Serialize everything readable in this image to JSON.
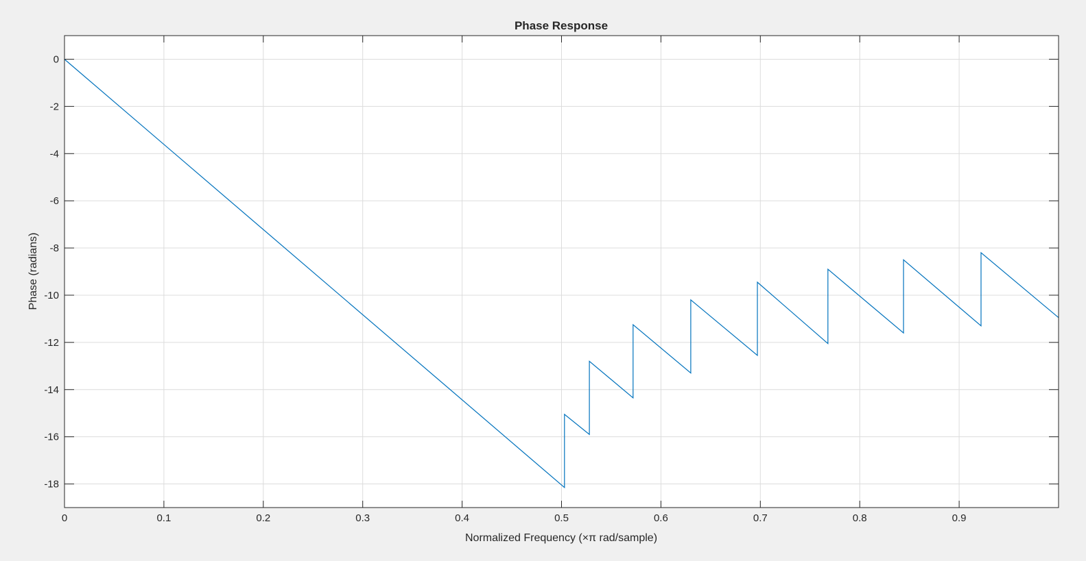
{
  "chart_data": {
    "type": "line",
    "title": "Phase Response",
    "xlabel": "Normalized Frequency (×π rad/sample)",
    "ylabel": "Phase (radians)",
    "xlim": [
      0,
      1
    ],
    "ylim": [
      -19,
      1
    ],
    "xticks": [
      0,
      0.1,
      0.2,
      0.3,
      0.4,
      0.5,
      0.6,
      0.7,
      0.8,
      0.9
    ],
    "xtick_labels": [
      "0",
      "0.1",
      "0.2",
      "0.3",
      "0.4",
      "0.5",
      "0.6",
      "0.7",
      "0.8",
      "0.9"
    ],
    "yticks": [
      0,
      -2,
      -4,
      -6,
      -8,
      -10,
      -12,
      -14,
      -16,
      -18
    ],
    "ytick_labels": [
      "0",
      "-2",
      "-4",
      "-6",
      "-8",
      "-10",
      "-12",
      "-14",
      "-16",
      "-18"
    ],
    "grid": true,
    "series": [
      {
        "color": "#0072bd",
        "x": [
          0,
          0.503,
          0.503,
          0.528,
          0.528,
          0.572,
          0.572,
          0.63,
          0.63,
          0.697,
          0.697,
          0.768,
          0.768,
          0.844,
          0.844,
          0.922,
          0.922,
          1.0
        ],
        "y": [
          0,
          -18.15,
          -15.05,
          -15.9,
          -12.8,
          -14.35,
          -11.25,
          -13.3,
          -10.2,
          -12.55,
          -9.45,
          -12.05,
          -8.9,
          -11.6,
          -8.5,
          -11.3,
          -8.2,
          -10.95
        ]
      }
    ]
  }
}
